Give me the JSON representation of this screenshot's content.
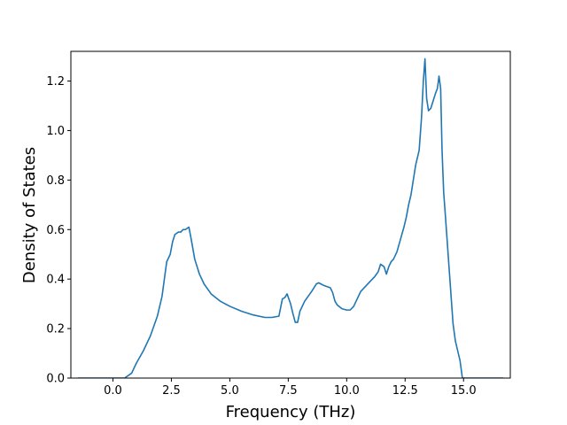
{
  "chart_data": {
    "type": "line",
    "title": "",
    "xlabel": "Frequency (THz)",
    "ylabel": "Density of States",
    "xlim": [
      -1.8,
      17.0
    ],
    "ylim": [
      0.0,
      1.32
    ],
    "x_ticks": [
      0.0,
      2.5,
      5.0,
      7.5,
      10.0,
      12.5,
      15.0
    ],
    "x_tick_labels": [
      "0.0",
      "2.5",
      "5.0",
      "7.5",
      "10.0",
      "12.5",
      "15.0"
    ],
    "y_ticks": [
      0.0,
      0.2,
      0.4,
      0.6,
      0.8,
      1.0,
      1.2
    ],
    "y_tick_labels": [
      "0.0",
      "0.2",
      "0.4",
      "0.6",
      "0.8",
      "1.0",
      "1.2"
    ],
    "grid": false,
    "legend": "none",
    "series": [
      {
        "color": "#1f77b4",
        "x": [
          -1.5,
          0.5,
          0.8,
          1.0,
          1.3,
          1.6,
          1.9,
          2.1,
          2.3,
          2.45,
          2.55,
          2.65,
          2.8,
          2.9,
          3.0,
          3.1,
          3.25,
          3.35,
          3.5,
          3.7,
          3.9,
          4.2,
          4.6,
          5.0,
          5.5,
          6.0,
          6.5,
          6.8,
          7.1,
          7.25,
          7.35,
          7.45,
          7.6,
          7.7,
          7.8,
          7.9,
          8.0,
          8.2,
          8.5,
          8.7,
          8.8,
          8.9,
          9.0,
          9.15,
          9.3,
          9.4,
          9.5,
          9.6,
          9.8,
          10.0,
          10.15,
          10.3,
          10.45,
          10.6,
          10.8,
          11.0,
          11.2,
          11.35,
          11.45,
          11.6,
          11.7,
          11.8,
          11.9,
          12.0,
          12.15,
          12.3,
          12.45,
          12.55,
          12.65,
          12.75,
          12.85,
          12.95,
          13.1,
          13.2,
          13.28,
          13.35,
          13.42,
          13.5,
          13.6,
          13.7,
          13.8,
          13.88,
          13.95,
          14.02,
          14.08,
          14.15,
          14.25,
          14.4,
          14.55,
          14.65,
          14.75,
          14.85,
          14.95,
          15.05,
          16.7
        ],
        "values": [
          0.0,
          0.0,
          0.02,
          0.06,
          0.11,
          0.17,
          0.25,
          0.33,
          0.47,
          0.5,
          0.55,
          0.58,
          0.59,
          0.59,
          0.6,
          0.6,
          0.61,
          0.56,
          0.48,
          0.42,
          0.38,
          0.34,
          0.31,
          0.29,
          0.27,
          0.255,
          0.245,
          0.245,
          0.25,
          0.32,
          0.325,
          0.34,
          0.3,
          0.26,
          0.225,
          0.225,
          0.27,
          0.31,
          0.35,
          0.38,
          0.385,
          0.38,
          0.375,
          0.37,
          0.365,
          0.345,
          0.31,
          0.295,
          0.28,
          0.275,
          0.275,
          0.29,
          0.32,
          0.35,
          0.37,
          0.39,
          0.41,
          0.43,
          0.46,
          0.45,
          0.42,
          0.45,
          0.47,
          0.48,
          0.51,
          0.56,
          0.61,
          0.65,
          0.7,
          0.74,
          0.8,
          0.86,
          0.92,
          1.05,
          1.2,
          1.29,
          1.13,
          1.08,
          1.09,
          1.12,
          1.15,
          1.17,
          1.22,
          1.17,
          0.92,
          0.75,
          0.62,
          0.42,
          0.22,
          0.15,
          0.11,
          0.07,
          0.0,
          0.0,
          0.0
        ]
      }
    ]
  }
}
